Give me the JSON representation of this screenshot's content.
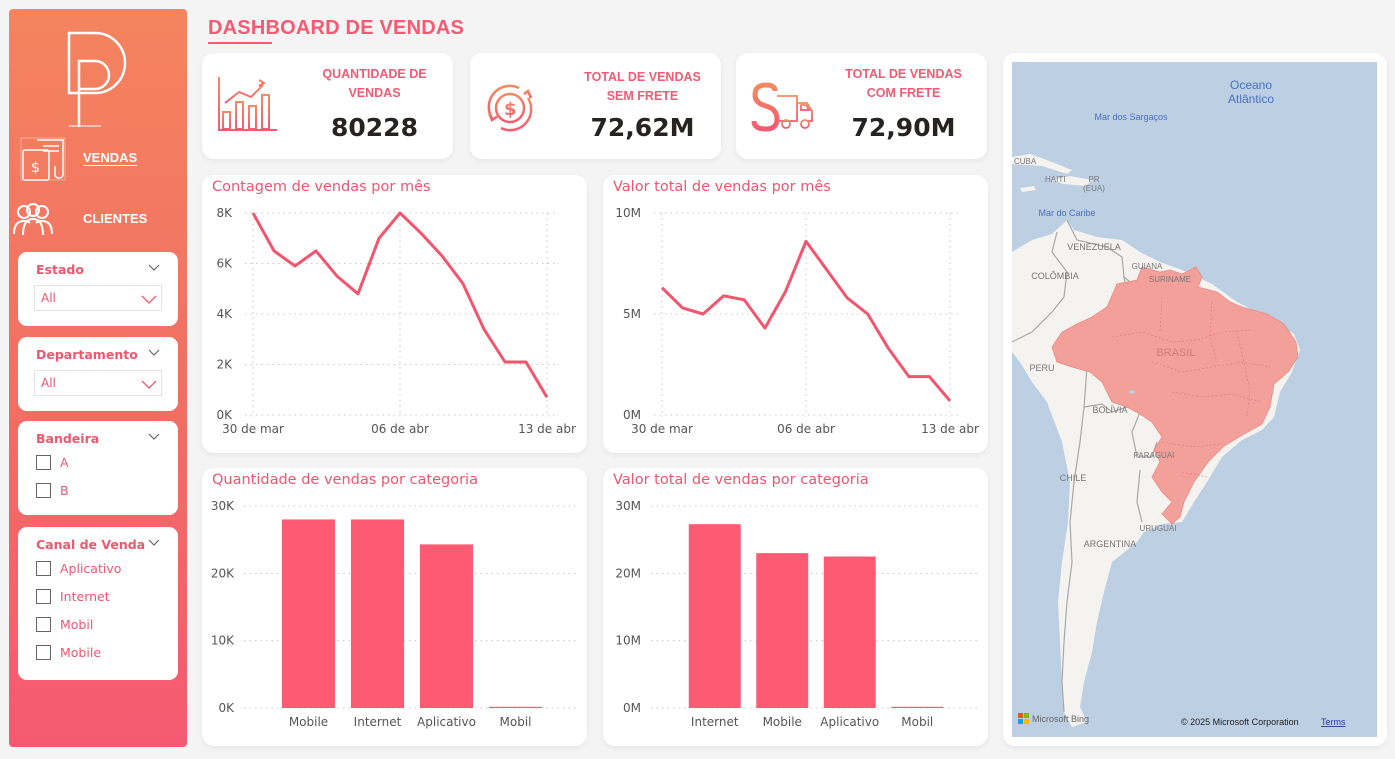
{
  "sidebar": {
    "logo": "pd-logo",
    "nav": [
      {
        "label": "VENDAS",
        "icon": "receipt-dollar-icon",
        "active": true
      },
      {
        "label": "CLIENTES",
        "icon": "users-group-icon",
        "active": false
      }
    ],
    "slicers": [
      {
        "title": "Estado",
        "type": "dropdown",
        "value": "All"
      },
      {
        "title": "Departamento",
        "type": "dropdown",
        "value": "All"
      },
      {
        "title": "Bandeira",
        "type": "list",
        "options": [
          "A",
          "B"
        ]
      },
      {
        "title": "Canal de Venda",
        "type": "list",
        "options": [
          "Aplicativo",
          "Internet",
          "Mobil",
          "Mobile"
        ]
      }
    ]
  },
  "header": {
    "title": "DASHBOARD DE VENDAS"
  },
  "kpis": [
    {
      "label_line1": "QUANTIDADE DE",
      "label_line2": "VENDAS",
      "value": "80228",
      "icon": "bar-chart-growth-icon"
    },
    {
      "label_line1": "TOTAL DE VENDAS",
      "label_line2": "SEM FRETE",
      "value": "72,62M",
      "icon": "dollar-cycle-icon"
    },
    {
      "label_line1": "TOTAL DE VENDAS",
      "label_line2": "COM FRETE",
      "value": "72,90M",
      "icon": "dollar-truck-icon"
    }
  ],
  "colors": {
    "accent": "#f55a72",
    "line": "#f2556e",
    "bar": "#fd5a73",
    "map_fill": "#f4a09a",
    "ocean": "#bdd0e3",
    "land": "#f5f3f0"
  },
  "chart_data": [
    {
      "type": "line",
      "title": "Contagem de vendas por mês",
      "x": [
        "30 mar",
        "31 mar",
        "01 abr",
        "02 abr",
        "03 abr",
        "04 abr",
        "05 abr",
        "06 abr",
        "07 abr",
        "08 abr",
        "09 abr",
        "10 abr",
        "11 abr",
        "12 abr",
        "13 abr"
      ],
      "x_tick_labels": [
        "30 de mar",
        "06 de abr",
        "13 de abr"
      ],
      "values": [
        8000,
        6500,
        5900,
        6500,
        5500,
        4800,
        7000,
        8000,
        7200,
        6300,
        5200,
        3400,
        2100,
        2100,
        700
      ],
      "y_tick_labels": [
        "0K",
        "2K",
        "4K",
        "6K",
        "8K"
      ],
      "ylim": [
        0,
        8000
      ],
      "grid": true
    },
    {
      "type": "line",
      "title": "Valor total de vendas por mês",
      "x": [
        "30 mar",
        "31 mar",
        "01 abr",
        "02 abr",
        "03 abr",
        "04 abr",
        "05 abr",
        "06 abr",
        "07 abr",
        "08 abr",
        "09 abr",
        "10 abr",
        "11 abr",
        "12 abr",
        "13 abr"
      ],
      "x_tick_labels": [
        "30 de mar",
        "06 de abr",
        "13 de abr"
      ],
      "values": [
        6.3,
        5.3,
        5.0,
        5.9,
        5.7,
        4.3,
        6.1,
        8.6,
        7.2,
        5.8,
        5.0,
        3.3,
        1.9,
        1.9,
        0.7
      ],
      "unit": "M",
      "y_tick_labels": [
        "0M",
        "5M",
        "10M"
      ],
      "ylim": [
        0,
        10
      ],
      "grid": true
    },
    {
      "type": "bar",
      "title": "Quantidade de vendas por categoria",
      "categories": [
        "Mobile",
        "Internet",
        "Aplicativo",
        "Mobil"
      ],
      "values": [
        28000,
        28000,
        24300,
        100
      ],
      "y_tick_labels": [
        "0K",
        "10K",
        "20K",
        "30K"
      ],
      "ylim": [
        0,
        30000
      ],
      "grid": true
    },
    {
      "type": "bar",
      "title": "Valor total de vendas por categoria",
      "categories": [
        "Internet",
        "Mobile",
        "Aplicativo",
        "Mobil"
      ],
      "values": [
        27.3,
        23.0,
        22.5,
        0.1
      ],
      "unit": "M",
      "y_tick_labels": [
        "0M",
        "10M",
        "20M",
        "30M"
      ],
      "ylim": [
        0,
        30
      ],
      "grid": true
    }
  ],
  "map": {
    "labels": {
      "ocean": [
        "Oceano",
        "Atlântico"
      ],
      "sargasso": "Mar dos Sargaços",
      "caribbean": "Mar do Caribe",
      "cuba": "CUBA",
      "haiti": "HAITI",
      "pr": [
        "PR",
        "(EUA)"
      ],
      "venezuela": "VENEZUELA",
      "guiana": "GUIANA",
      "suriname": "SURINAME",
      "colombia": "COLÔMBIA",
      "peru": "PERU",
      "brasil": "BRASIL",
      "bolivia": "BOLÍVIA",
      "paraguai": "PARAGUAI",
      "chile": "CHILE",
      "uruguai": "URUGUAI",
      "argentina": "ARGENTINA"
    },
    "highlighted_country": "BRASIL",
    "attribution_logo": "Microsoft Bing",
    "copyright": "© 2025 Microsoft Corporation",
    "terms_link": "Terms"
  }
}
